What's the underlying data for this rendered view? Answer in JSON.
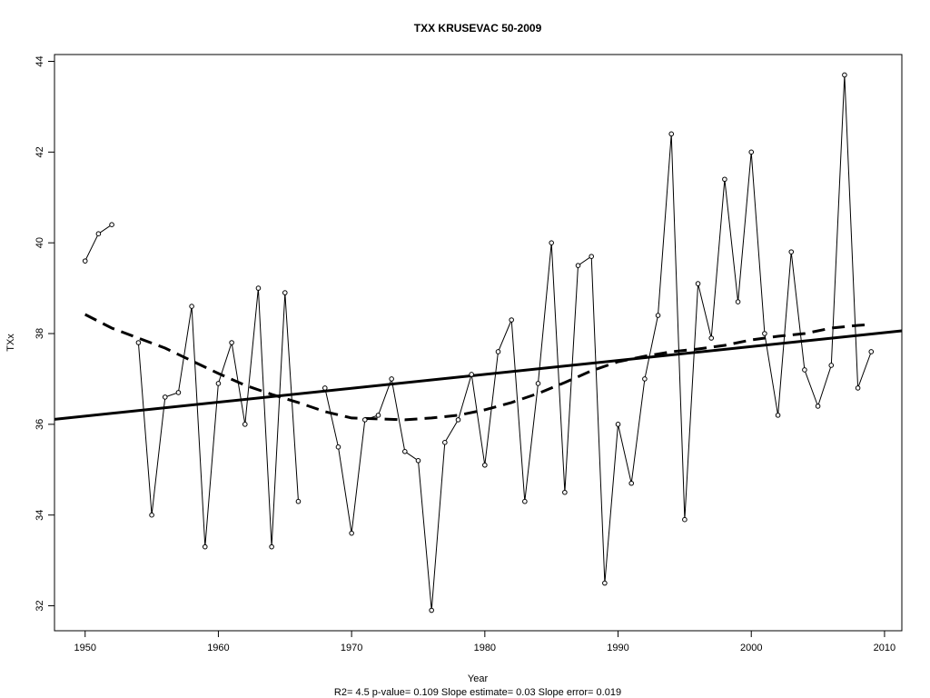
{
  "chart_data": {
    "type": "line",
    "title": "TXX   KRUSEVAC 50-2009",
    "xlabel": "Year",
    "ylabel": "TXx",
    "footer": "R2= 4.5  p-value= 0.109  Slope estimate= 0.03  Slope error= 0.019",
    "xlim": [
      1947.7,
      2011.3
    ],
    "ylim": [
      31.45,
      44.15
    ],
    "xticks": [
      "1950",
      "1960",
      "1970",
      "1980",
      "1990",
      "2000",
      "2010"
    ],
    "yticks": [
      "32",
      "34",
      "36",
      "38",
      "40",
      "42",
      "44"
    ],
    "grid": false,
    "series": [
      {
        "kind": "observed",
        "x": [
          1950,
          1951,
          1952,
          1953,
          1954,
          1955,
          1956,
          1957,
          1958,
          1959,
          1960,
          1961,
          1962,
          1963,
          1964,
          1965,
          1966,
          1967,
          1968,
          1969,
          1970,
          1971,
          1972,
          1973,
          1974,
          1975,
          1976,
          1977,
          1978,
          1979,
          1980,
          1981,
          1982,
          1983,
          1984,
          1985,
          1986,
          1987,
          1988,
          1989,
          1990,
          1991,
          1992,
          1993,
          1994,
          1995,
          1996,
          1997,
          1998,
          1999,
          2000,
          2001,
          2002,
          2003,
          2004,
          2005,
          2006,
          2007,
          2008,
          2009
        ],
        "y": [
          39.6,
          40.2,
          40.4,
          null,
          37.8,
          34.0,
          36.6,
          36.7,
          38.6,
          33.3,
          36.9,
          37.8,
          36.0,
          39.0,
          33.3,
          38.9,
          34.3,
          null,
          36.8,
          35.5,
          33.6,
          36.1,
          36.2,
          37.0,
          35.4,
          35.2,
          31.9,
          35.6,
          36.1,
          37.1,
          35.1,
          37.6,
          38.3,
          34.3,
          36.9,
          40.0,
          34.5,
          39.5,
          39.7,
          32.5,
          36.0,
          34.7,
          37.0,
          38.4,
          42.4,
          33.9,
          39.1,
          37.9,
          41.4,
          38.7,
          42.0,
          38.0,
          36.2,
          39.8,
          37.2,
          36.4,
          37.3,
          43.7,
          36.8,
          37.6
        ]
      },
      {
        "kind": "linear-trend",
        "x": [
          1947.7,
          2011.3
        ],
        "y": [
          36.11,
          38.06
        ]
      },
      {
        "kind": "smoothed",
        "x": [
          1950,
          1952,
          1954,
          1956,
          1958,
          1960,
          1962,
          1964,
          1966,
          1968,
          1970,
          1972,
          1974,
          1976,
          1978,
          1980,
          1982,
          1984,
          1986,
          1988,
          1990,
          1992,
          1994,
          1996,
          1998,
          2000,
          2002,
          2004,
          2006,
          2008,
          2009
        ],
        "y": [
          38.42,
          38.12,
          37.9,
          37.68,
          37.4,
          37.12,
          36.86,
          36.66,
          36.48,
          36.28,
          36.14,
          36.12,
          36.1,
          36.14,
          36.2,
          36.32,
          36.48,
          36.68,
          36.92,
          37.18,
          37.38,
          37.5,
          37.6,
          37.66,
          37.74,
          37.86,
          37.94,
          38.0,
          38.12,
          38.18,
          38.2
        ]
      }
    ]
  }
}
